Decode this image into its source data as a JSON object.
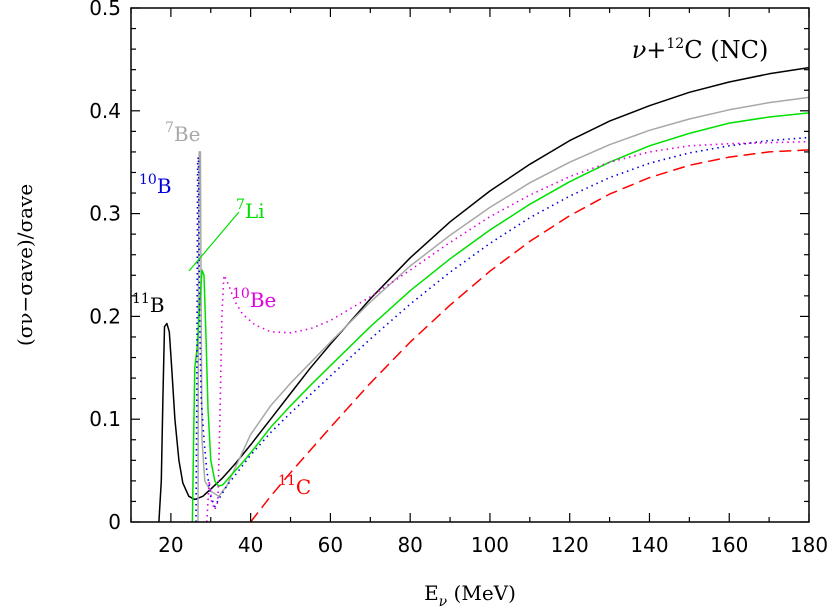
{
  "chart_data": {
    "type": "line",
    "title": "ν+¹²C (NC)",
    "title_parts": {
      "pre": "ν+",
      "sup": "12",
      "post": "C  (NC)"
    },
    "xlabel_parts": {
      "main": "E",
      "sub": "ν",
      "post": " (MeV)"
    },
    "ylabel": "(σν−σave)/σave",
    "xlim": [
      10,
      180
    ],
    "ylim": [
      0,
      0.5
    ],
    "xticks": [
      20,
      40,
      60,
      80,
      100,
      120,
      140,
      160,
      180
    ],
    "yticks": [
      0,
      0.1,
      0.2,
      0.3,
      0.4,
      0.5
    ],
    "xtick_labels": [
      "20",
      "40",
      "60",
      "80",
      "100",
      "120",
      "140",
      "160",
      "180"
    ],
    "ytick_labels": [
      "0",
      "0.1",
      "0.2",
      "0.3",
      "0.4",
      "0.5"
    ],
    "grid": false,
    "series": [
      {
        "name": "11B",
        "label_sup": "11",
        "label_main": "B",
        "color": "#000000",
        "dash": "",
        "points": [
          [
            17.0,
            0.0
          ],
          [
            17.6,
            0.04
          ],
          [
            18.0,
            0.12
          ],
          [
            18.4,
            0.19
          ],
          [
            19.0,
            0.193
          ],
          [
            19.6,
            0.185
          ],
          [
            20.2,
            0.15
          ],
          [
            21.0,
            0.1
          ],
          [
            22.0,
            0.06
          ],
          [
            23.0,
            0.038
          ],
          [
            24.5,
            0.025
          ],
          [
            26.0,
            0.022
          ],
          [
            28.0,
            0.025
          ],
          [
            30.0,
            0.032
          ],
          [
            33.0,
            0.043
          ],
          [
            36.0,
            0.056
          ],
          [
            40.0,
            0.075
          ],
          [
            45.0,
            0.1
          ],
          [
            50.0,
            0.125
          ],
          [
            55.0,
            0.15
          ],
          [
            60.0,
            0.173
          ],
          [
            70.0,
            0.217
          ],
          [
            80.0,
            0.257
          ],
          [
            90.0,
            0.292
          ],
          [
            100.0,
            0.322
          ],
          [
            110.0,
            0.348
          ],
          [
            120.0,
            0.371
          ],
          [
            130.0,
            0.39
          ],
          [
            140.0,
            0.405
          ],
          [
            150.0,
            0.418
          ],
          [
            160.0,
            0.428
          ],
          [
            170.0,
            0.436
          ],
          [
            180.0,
            0.442
          ]
        ]
      },
      {
        "name": "7Be",
        "label_sup": "7",
        "label_main": "Be",
        "color": "#a8a8a8",
        "dash": "",
        "points": [
          [
            26.8,
            0.0
          ],
          [
            26.9,
            0.2
          ],
          [
            27.1,
            0.36
          ],
          [
            27.4,
            0.36
          ],
          [
            27.6,
            0.2
          ],
          [
            27.8,
            0.08
          ],
          [
            28.5,
            0.04
          ],
          [
            30.0,
            0.03
          ],
          [
            32.0,
            0.025
          ],
          [
            34.0,
            0.035
          ],
          [
            37.0,
            0.06
          ],
          [
            40.0,
            0.085
          ],
          [
            45.0,
            0.113
          ],
          [
            50.0,
            0.135
          ],
          [
            55.0,
            0.155
          ],
          [
            60.0,
            0.175
          ],
          [
            70.0,
            0.214
          ],
          [
            80.0,
            0.249
          ],
          [
            90.0,
            0.279
          ],
          [
            100.0,
            0.306
          ],
          [
            110.0,
            0.33
          ],
          [
            120.0,
            0.35
          ],
          [
            130.0,
            0.367
          ],
          [
            140.0,
            0.381
          ],
          [
            150.0,
            0.392
          ],
          [
            160.0,
            0.401
          ],
          [
            170.0,
            0.408
          ],
          [
            180.0,
            0.413
          ]
        ]
      },
      {
        "name": "7Li",
        "label_sup": "7",
        "label_main": "Li",
        "color": "#00e000",
        "dash": "",
        "points": [
          [
            25.4,
            0.0
          ],
          [
            25.7,
            0.08
          ],
          [
            26.0,
            0.15
          ],
          [
            26.6,
            0.17
          ],
          [
            27.2,
            0.21
          ],
          [
            27.8,
            0.245
          ],
          [
            28.3,
            0.24
          ],
          [
            28.8,
            0.18
          ],
          [
            29.3,
            0.11
          ],
          [
            30.0,
            0.06
          ],
          [
            31.0,
            0.04
          ],
          [
            32.0,
            0.035
          ],
          [
            33.0,
            0.036
          ],
          [
            35.0,
            0.045
          ],
          [
            38.0,
            0.058
          ],
          [
            41.0,
            0.072
          ],
          [
            45.0,
            0.092
          ],
          [
            50.0,
            0.113
          ],
          [
            55.0,
            0.133
          ],
          [
            60.0,
            0.152
          ],
          [
            70.0,
            0.19
          ],
          [
            80.0,
            0.225
          ],
          [
            90.0,
            0.256
          ],
          [
            100.0,
            0.284
          ],
          [
            110.0,
            0.309
          ],
          [
            120.0,
            0.331
          ],
          [
            130.0,
            0.35
          ],
          [
            140.0,
            0.366
          ],
          [
            150.0,
            0.378
          ],
          [
            160.0,
            0.388
          ],
          [
            170.0,
            0.394
          ],
          [
            180.0,
            0.398
          ]
        ]
      },
      {
        "name": "10B",
        "label_sup": "10",
        "label_main": "B",
        "color": "#0000d8",
        "dash": "1.5,4",
        "points": [
          [
            26.3,
            0.0
          ],
          [
            26.5,
            0.12
          ],
          [
            26.7,
            0.35
          ],
          [
            26.9,
            0.355
          ],
          [
            27.2,
            0.2
          ],
          [
            27.6,
            0.12
          ],
          [
            28.3,
            0.08
          ],
          [
            29.0,
            0.05
          ],
          [
            30.0,
            0.025
          ],
          [
            31.0,
            0.015
          ],
          [
            32.0,
            0.022
          ],
          [
            34.0,
            0.035
          ],
          [
            37.0,
            0.05
          ],
          [
            40.0,
            0.065
          ],
          [
            45.0,
            0.087
          ],
          [
            50.0,
            0.106
          ],
          [
            55.0,
            0.124
          ],
          [
            60.0,
            0.142
          ],
          [
            70.0,
            0.178
          ],
          [
            80.0,
            0.212
          ],
          [
            90.0,
            0.243
          ],
          [
            100.0,
            0.271
          ],
          [
            110.0,
            0.296
          ],
          [
            120.0,
            0.317
          ],
          [
            130.0,
            0.335
          ],
          [
            140.0,
            0.349
          ],
          [
            150.0,
            0.359
          ],
          [
            160.0,
            0.366
          ],
          [
            170.0,
            0.371
          ],
          [
            180.0,
            0.374
          ]
        ]
      },
      {
        "name": "10Be",
        "label_sup": "10",
        "label_main": "Be",
        "color": "#e000e0",
        "dash": "1.5,4",
        "points": [
          [
            29.0,
            0.0
          ],
          [
            29.6,
            0.04
          ],
          [
            30.2,
            0.02
          ],
          [
            31.0,
            0.012
          ],
          [
            31.8,
            0.02
          ],
          [
            32.3,
            0.1
          ],
          [
            32.8,
            0.2
          ],
          [
            33.3,
            0.24
          ],
          [
            34.0,
            0.235
          ],
          [
            36.0,
            0.215
          ],
          [
            38.0,
            0.202
          ],
          [
            41.0,
            0.192
          ],
          [
            45.0,
            0.185
          ],
          [
            50.0,
            0.184
          ],
          [
            55.0,
            0.188
          ],
          [
            60.0,
            0.196
          ],
          [
            70.0,
            0.219
          ],
          [
            80.0,
            0.245
          ],
          [
            90.0,
            0.272
          ],
          [
            100.0,
            0.297
          ],
          [
            110.0,
            0.318
          ],
          [
            120.0,
            0.336
          ],
          [
            130.0,
            0.35
          ],
          [
            140.0,
            0.36
          ],
          [
            150.0,
            0.366
          ],
          [
            160.0,
            0.368
          ],
          [
            170.0,
            0.369
          ],
          [
            180.0,
            0.37
          ]
        ]
      },
      {
        "name": "11C",
        "label_sup": "11",
        "label_main": "C",
        "color": "#ff0000",
        "dash": "12,6",
        "points": [
          [
            40.0,
            0.0
          ],
          [
            42.0,
            0.01
          ],
          [
            45.0,
            0.025
          ],
          [
            50.0,
            0.048
          ],
          [
            55.0,
            0.07
          ],
          [
            60.0,
            0.092
          ],
          [
            70.0,
            0.135
          ],
          [
            80.0,
            0.175
          ],
          [
            90.0,
            0.211
          ],
          [
            100.0,
            0.244
          ],
          [
            110.0,
            0.273
          ],
          [
            120.0,
            0.298
          ],
          [
            130.0,
            0.319
          ],
          [
            140.0,
            0.335
          ],
          [
            150.0,
            0.347
          ],
          [
            160.0,
            0.355
          ],
          [
            170.0,
            0.36
          ],
          [
            180.0,
            0.362
          ]
        ]
      }
    ]
  }
}
